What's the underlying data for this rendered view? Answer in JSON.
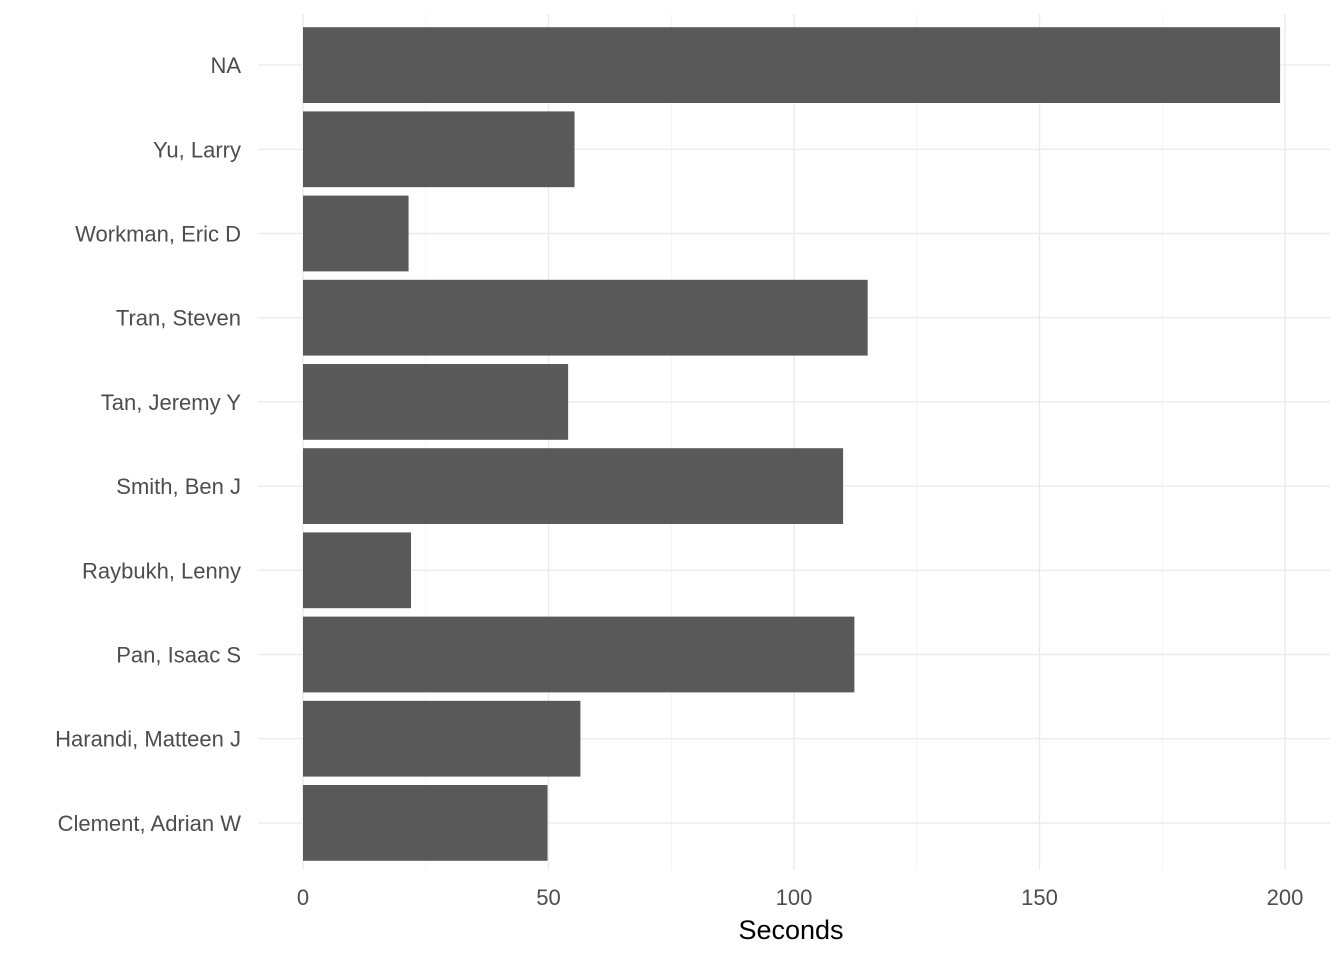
{
  "chart_data": {
    "type": "bar",
    "orientation": "horizontal",
    "categories": [
      "Clement, Adrian W",
      "Harandi, Matteen J",
      "Pan, Isaac S",
      "Raybukh, Lenny",
      "Smith, Ben J",
      "Tan, Jeremy Y",
      "Tran, Steven",
      "Workman, Eric D",
      "Yu, Larry",
      "NA"
    ],
    "values": [
      49.8,
      56.5,
      112.3,
      22,
      110,
      54,
      115,
      21.5,
      55.3,
      199
    ],
    "title": "",
    "xlabel": "Seconds",
    "ylabel": "",
    "xlim": [
      0,
      207
    ],
    "x_ticks": [
      0,
      50,
      100,
      150,
      200
    ],
    "x_tick_labels": [
      "0",
      "50",
      "100",
      "150",
      "200"
    ],
    "grid": true,
    "theme": "minimal",
    "bar_color": "#595959",
    "grid_color": "#ebebeb",
    "text_color": "#4d4d4d"
  }
}
